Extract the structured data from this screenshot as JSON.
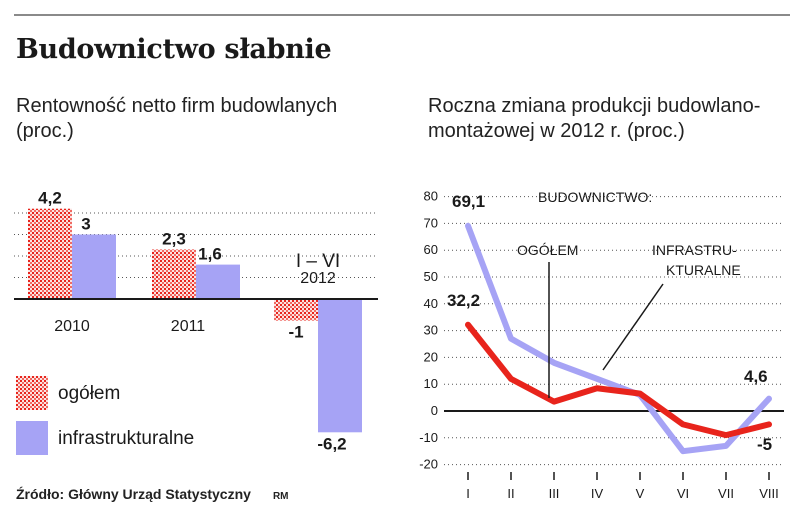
{
  "title": "Budownictwo słabnie",
  "footer": {
    "source": "Źródło: Główny Urząd Statystyczny",
    "credit": "RM"
  },
  "colors": {
    "ogolem": "#e8241c",
    "infra": "#a6a3f5",
    "ogolem_pattern": "#e8241c",
    "axis": "#1a1a1a"
  },
  "chart_data": [
    {
      "type": "bar",
      "title": "Rentowność netto firm budowlanych (proc.)",
      "categories": [
        "2010",
        "2011",
        "I – VI 2012"
      ],
      "category_labels": {
        "first": "2010",
        "second": "2011",
        "third_line1": "I – VI",
        "third_line2": "2012"
      },
      "series": [
        {
          "name": "ogółem",
          "values": [
            4.2,
            2.3,
            -1
          ],
          "labels": [
            "4,2",
            "2,3",
            "-1"
          ]
        },
        {
          "name": "infrastrukturalne",
          "values": [
            3,
            1.6,
            -6.2
          ],
          "labels": [
            "3",
            "1,6",
            "-6,2"
          ]
        }
      ],
      "legend": {
        "position": "bottom-left",
        "entries": [
          "ogółem",
          "infrastrukturalne"
        ]
      },
      "grid": "dotted horizontal"
    },
    {
      "type": "line",
      "title": "Roczna zmiana produkcji budowlano-montażowej w 2012 r. (proc.)",
      "x": [
        "I",
        "II",
        "III",
        "IV",
        "V",
        "VI",
        "VII",
        "VIII"
      ],
      "yticks": [
        80,
        70,
        60,
        50,
        40,
        30,
        20,
        10,
        0,
        -10,
        -20
      ],
      "ytick_labels": [
        "80",
        "70",
        "60",
        "50",
        "40",
        "30",
        "20",
        "10",
        "0",
        "-10",
        "-20"
      ],
      "ylim": [
        -20,
        80
      ],
      "series": [
        {
          "name": "OGÓŁEM",
          "values": [
            32.2,
            12,
            3.5,
            8.5,
            6.5,
            -5,
            -9,
            -5
          ],
          "start_label": "32,2",
          "end_label": "-5"
        },
        {
          "name": "INFRASTRUKTURALNE",
          "values": [
            69.1,
            27,
            18,
            12,
            6,
            -15,
            -13,
            4.6
          ],
          "start_label": "69,1",
          "end_label": "4,6"
        }
      ],
      "annotations": {
        "header": "BUDOWNICTWO:",
        "ogolem": "OGÓŁEM",
        "infra_line1": "INFRASTRU-",
        "infra_line2": "KTURALNE"
      },
      "grid": "dotted horizontal"
    }
  ]
}
